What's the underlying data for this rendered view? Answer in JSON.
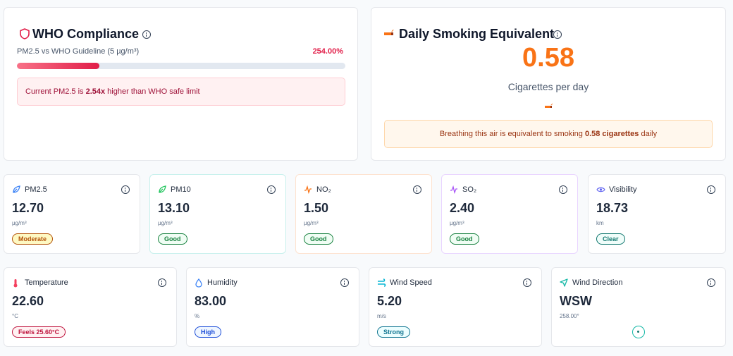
{
  "who": {
    "title": "WHO Compliance",
    "subtitle": "PM2.5 vs WHO Guideline (5 µg/m³)",
    "percent": "254.00%",
    "progress_fraction": 0.25,
    "alert_prefix": "Current PM2.5 is ",
    "alert_value": "2.54x",
    "alert_suffix": " higher than WHO safe limit"
  },
  "smoking": {
    "title": "Daily Smoking Equivalent",
    "value": "0.58",
    "label": "Cigarettes per day",
    "note_prefix": "Breathing this air is equivalent to smoking ",
    "note_value": "0.58 cigarettes",
    "note_suffix": " daily"
  },
  "metrics": [
    {
      "name": "PM2.5",
      "value": "12.70",
      "unit": "µg/m³",
      "badge": "Moderate",
      "icon": "leaf-icon"
    },
    {
      "name": "PM10",
      "value": "13.10",
      "unit": "µg/m³",
      "badge": "Good",
      "icon": "leaf-icon"
    },
    {
      "name": "NO₂",
      "value": "1.50",
      "unit": "µg/m³",
      "badge": "Good",
      "icon": "pulse-icon"
    },
    {
      "name": "SO₂",
      "value": "2.40",
      "unit": "µg/m³",
      "badge": "Good",
      "icon": "pulse-icon"
    },
    {
      "name": "Visibility",
      "value": "18.73",
      "unit": "km",
      "badge": "Clear",
      "icon": "eye-icon"
    },
    {
      "name": "Temperature",
      "value": "22.60",
      "unit": "°C",
      "badge": "Feels 25.60°C",
      "icon": "thermometer-icon"
    },
    {
      "name": "Humidity",
      "value": "83.00",
      "unit": "%",
      "badge": "High",
      "icon": "droplet-icon"
    },
    {
      "name": "Wind Speed",
      "value": "5.20",
      "unit": "m/s",
      "badge": "Strong",
      "icon": "wind-icon"
    },
    {
      "name": "Wind Direction",
      "value": "WSW",
      "unit": "258.00°",
      "icon": "navigation-icon"
    }
  ],
  "colors": {
    "accent_red": "#e11d48",
    "accent_orange": "#f97316"
  }
}
